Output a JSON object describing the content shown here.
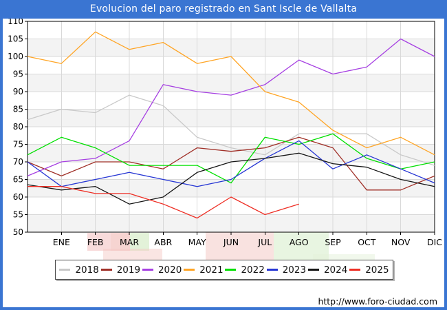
{
  "title": "Evolucion del paro registrado en Sant Iscle de Vallalta",
  "footer": {
    "url": "http://www.foro-ciudad.com"
  },
  "ui": {
    "title_bar_color": "#3a75d2",
    "frame_border_color": "#3a75d2",
    "plot_band_color": "#f3f3f3",
    "gridline_color": "#d9d9d9",
    "axis_color": "#000000"
  },
  "chart_data": {
    "type": "line",
    "title": "Evolucion del paro registrado en Sant Iscle de Vallalta",
    "xlabel": "",
    "ylabel": "",
    "months": [
      "ENE",
      "FEB",
      "MAR",
      "ABR",
      "MAY",
      "JUN",
      "JUL",
      "AGO",
      "SEP",
      "OCT",
      "NOV",
      "DIC"
    ],
    "ylim": [
      50,
      110
    ],
    "ytick_step": 5,
    "grid": true,
    "legend_position": "bottom",
    "note": "Each series begins with an unlabeled point on the y-axis followed by 12 monthly values; the 2025 series ends at AGO.",
    "series": [
      {
        "name": "2018",
        "color": "#c9c9c9",
        "values": [
          82,
          85,
          84,
          89,
          86,
          77,
          74,
          72,
          78,
          78,
          78,
          72,
          69
        ]
      },
      {
        "name": "2019",
        "color": "#a03028",
        "values": [
          70,
          66,
          70,
          70,
          68,
          74,
          73,
          74,
          77,
          74,
          62,
          62,
          66
        ]
      },
      {
        "name": "2020",
        "color": "#a640e2",
        "values": [
          66,
          70,
          71,
          76,
          92,
          90,
          89,
          92,
          99,
          95,
          97,
          105,
          100
        ]
      },
      {
        "name": "2021",
        "color": "#ffa525",
        "values": [
          100,
          98,
          107,
          102,
          104,
          98,
          100,
          90,
          87,
          79,
          74,
          77,
          72
        ]
      },
      {
        "name": "2022",
        "color": "#00e000",
        "values": [
          72,
          77,
          74,
          69,
          69,
          69,
          64,
          77,
          75,
          78,
          71,
          68,
          70
        ]
      },
      {
        "name": "2023",
        "color": "#2636d4",
        "values": [
          70,
          63,
          65,
          67,
          65,
          63,
          65,
          71,
          76,
          68,
          72,
          68,
          64
        ]
      },
      {
        "name": "2024",
        "color": "#151515",
        "values": [
          63.5,
          62,
          63,
          58,
          60,
          67,
          70,
          71,
          72.5,
          69.5,
          68.5,
          65,
          63
        ]
      },
      {
        "name": "2025",
        "color": "#ee2e24",
        "values": [
          63,
          63,
          61,
          61,
          58,
          54,
          60,
          55,
          58
        ]
      }
    ]
  }
}
